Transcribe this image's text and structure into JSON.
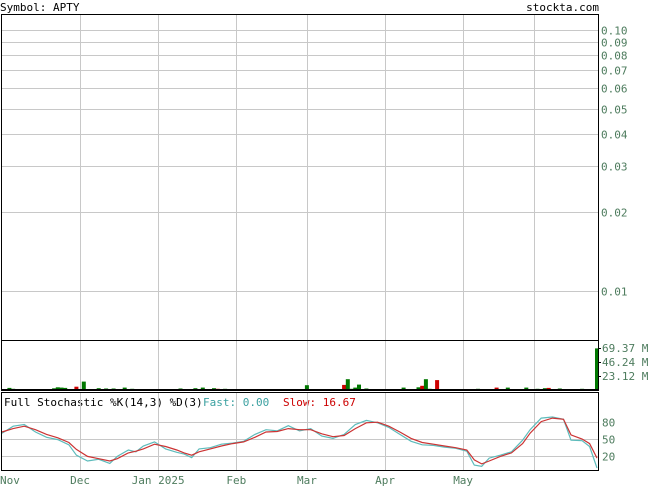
{
  "header": {
    "symbol_label": "Symbol: APTY",
    "site": "stockta.com"
  },
  "colors": {
    "grid": "#c8c8c8",
    "axis_text": "#4e7c5e",
    "frame": "#000000",
    "vol_up": "#007700",
    "vol_down": "#cc0000",
    "fast_line": "#5dbbbb",
    "slow_line": "#cc3333",
    "fast_label": "#3aa0a0",
    "slow_label": "#cc0000"
  },
  "chart_data": [
    {
      "type": "line",
      "name": "price",
      "scale": "log",
      "ylim": [
        0.0065,
        0.115
      ],
      "yticks": [
        0.1,
        0.09,
        0.08,
        0.07,
        0.06,
        0.05,
        0.04,
        0.03,
        0.02,
        0.01
      ],
      "ytick_labels": [
        "0.10",
        "0.09",
        "0.08",
        "0.07",
        "0.06",
        "0.05",
        "0.04",
        "0.03",
        "0.02",
        "0.01"
      ],
      "series": []
    },
    {
      "type": "bar",
      "name": "volume",
      "ytick_labels": [
        "69.37 M",
        "46.24 M",
        "23.12 M"
      ],
      "yticks": [
        69.37,
        46.24,
        23.12
      ],
      "ylim": [
        0,
        80
      ],
      "bars": [
        {
          "d": 2,
          "v": 3.5,
          "c": "up"
        },
        {
          "d": 3,
          "v": 2.0,
          "c": "up"
        },
        {
          "d": 6,
          "v": 1.5,
          "c": "up"
        },
        {
          "d": 8,
          "v": 1.2,
          "c": "up"
        },
        {
          "d": 14,
          "v": 2.8,
          "c": "up"
        },
        {
          "d": 15,
          "v": 4.5,
          "c": "up"
        },
        {
          "d": 16,
          "v": 4.0,
          "c": "up"
        },
        {
          "d": 17,
          "v": 3.5,
          "c": "up"
        },
        {
          "d": 20,
          "v": 5.5,
          "c": "down"
        },
        {
          "d": 21,
          "v": 1.5,
          "c": "up"
        },
        {
          "d": 22,
          "v": 14.0,
          "c": "up"
        },
        {
          "d": 23,
          "v": 1.0,
          "c": "up"
        },
        {
          "d": 26,
          "v": 3.0,
          "c": "up"
        },
        {
          "d": 28,
          "v": 2.5,
          "c": "up"
        },
        {
          "d": 30,
          "v": 2.5,
          "c": "up"
        },
        {
          "d": 33,
          "v": 4.0,
          "c": "up"
        },
        {
          "d": 35,
          "v": 2.0,
          "c": "up"
        },
        {
          "d": 37,
          "v": 1.5,
          "c": "up"
        },
        {
          "d": 38,
          "v": 1.0,
          "c": "up"
        },
        {
          "d": 44,
          "v": 1.0,
          "c": "up"
        },
        {
          "d": 48,
          "v": 2.5,
          "c": "up"
        },
        {
          "d": 52,
          "v": 3.0,
          "c": "up"
        },
        {
          "d": 54,
          "v": 4.0,
          "c": "up"
        },
        {
          "d": 55,
          "v": 1.5,
          "c": "up"
        },
        {
          "d": 57,
          "v": 3.0,
          "c": "up"
        },
        {
          "d": 58,
          "v": 2.0,
          "c": "down"
        },
        {
          "d": 60,
          "v": 2.0,
          "c": "up"
        },
        {
          "d": 63,
          "v": 1.0,
          "c": "up"
        },
        {
          "d": 82,
          "v": 8.0,
          "c": "up"
        },
        {
          "d": 92,
          "v": 8.5,
          "c": "down"
        },
        {
          "d": 93,
          "v": 18.0,
          "c": "up"
        },
        {
          "d": 94,
          "v": 2.0,
          "c": "up"
        },
        {
          "d": 95,
          "v": 4.0,
          "c": "up"
        },
        {
          "d": 96,
          "v": 9.0,
          "c": "up"
        },
        {
          "d": 98,
          "v": 2.5,
          "c": "up"
        },
        {
          "d": 101,
          "v": 1.5,
          "c": "up"
        },
        {
          "d": 108,
          "v": 4.0,
          "c": "up"
        },
        {
          "d": 112,
          "v": 4.5,
          "c": "up"
        },
        {
          "d": 113,
          "v": 7.0,
          "c": "down"
        },
        {
          "d": 114,
          "v": 18.0,
          "c": "up"
        },
        {
          "d": 115,
          "v": 2.0,
          "c": "up"
        },
        {
          "d": 117,
          "v": 16.5,
          "c": "down"
        },
        {
          "d": 128,
          "v": 2.0,
          "c": "up"
        },
        {
          "d": 131,
          "v": 1.5,
          "c": "up"
        },
        {
          "d": 133,
          "v": 4.0,
          "c": "down"
        },
        {
          "d": 136,
          "v": 4.0,
          "c": "up"
        },
        {
          "d": 141,
          "v": 4.0,
          "c": "up"
        },
        {
          "d": 144,
          "v": 2.0,
          "c": "up"
        },
        {
          "d": 146,
          "v": 3.0,
          "c": "up"
        },
        {
          "d": 147,
          "v": 3.5,
          "c": "down"
        },
        {
          "d": 150,
          "v": 2.5,
          "c": "up"
        },
        {
          "d": 156,
          "v": 2.0,
          "c": "up"
        },
        {
          "d": 160,
          "v": 69.37,
          "c": "up"
        }
      ]
    },
    {
      "type": "line",
      "name": "stochastic",
      "title": "Full Stochastic %K(14,3) %D(3)",
      "fast_label": "Fast: 0.00",
      "slow_label": "Slow: 16.67",
      "ylim": [
        0,
        100
      ],
      "yticks": [
        80,
        50,
        20
      ],
      "ytick_labels": [
        "80",
        "50",
        "20"
      ],
      "fast": [
        [
          0,
          60
        ],
        [
          3,
          72
        ],
        [
          6,
          75
        ],
        [
          9,
          62
        ],
        [
          12,
          53
        ],
        [
          15,
          49
        ],
        [
          18,
          40
        ],
        [
          20,
          22
        ],
        [
          23,
          12
        ],
        [
          26,
          15
        ],
        [
          29,
          8
        ],
        [
          31,
          20
        ],
        [
          34,
          31
        ],
        [
          36,
          28
        ],
        [
          38,
          38
        ],
        [
          41,
          45
        ],
        [
          44,
          33
        ],
        [
          47,
          27
        ],
        [
          49,
          24
        ],
        [
          51,
          18
        ],
        [
          53,
          33
        ],
        [
          56,
          35
        ],
        [
          59,
          41
        ],
        [
          62,
          43
        ],
        [
          65,
          46
        ],
        [
          68,
          58
        ],
        [
          71,
          66
        ],
        [
          74,
          64
        ],
        [
          77,
          73
        ],
        [
          80,
          64
        ],
        [
          83,
          68
        ],
        [
          86,
          55
        ],
        [
          89,
          51
        ],
        [
          92,
          58
        ],
        [
          95,
          75
        ],
        [
          98,
          82
        ],
        [
          101,
          78
        ],
        [
          104,
          70
        ],
        [
          107,
          58
        ],
        [
          110,
          46
        ],
        [
          113,
          40
        ],
        [
          116,
          39
        ],
        [
          119,
          36
        ],
        [
          122,
          34
        ],
        [
          125,
          29
        ],
        [
          127,
          5
        ],
        [
          129,
          3
        ],
        [
          131,
          17
        ],
        [
          134,
          22
        ],
        [
          137,
          28
        ],
        [
          140,
          48
        ],
        [
          142,
          66
        ],
        [
          145,
          86
        ],
        [
          148,
          88
        ],
        [
          151,
          84
        ],
        [
          153,
          48
        ],
        [
          156,
          47
        ],
        [
          158,
          37
        ],
        [
          160,
          0
        ]
      ],
      "slow": [
        [
          0,
          62
        ],
        [
          3,
          68
        ],
        [
          6,
          72
        ],
        [
          9,
          66
        ],
        [
          12,
          58
        ],
        [
          15,
          52
        ],
        [
          18,
          44
        ],
        [
          20,
          32
        ],
        [
          23,
          20
        ],
        [
          26,
          16
        ],
        [
          29,
          12
        ],
        [
          31,
          16
        ],
        [
          34,
          26
        ],
        [
          36,
          29
        ],
        [
          38,
          33
        ],
        [
          41,
          41
        ],
        [
          44,
          37
        ],
        [
          47,
          31
        ],
        [
          49,
          26
        ],
        [
          51,
          22
        ],
        [
          53,
          28
        ],
        [
          56,
          33
        ],
        [
          59,
          38
        ],
        [
          62,
          42
        ],
        [
          65,
          45
        ],
        [
          68,
          53
        ],
        [
          71,
          62
        ],
        [
          74,
          63
        ],
        [
          77,
          68
        ],
        [
          80,
          66
        ],
        [
          83,
          66
        ],
        [
          86,
          59
        ],
        [
          89,
          54
        ],
        [
          92,
          56
        ],
        [
          95,
          68
        ],
        [
          98,
          78
        ],
        [
          101,
          79
        ],
        [
          104,
          72
        ],
        [
          107,
          62
        ],
        [
          110,
          51
        ],
        [
          113,
          44
        ],
        [
          116,
          41
        ],
        [
          119,
          38
        ],
        [
          122,
          35
        ],
        [
          125,
          31
        ],
        [
          127,
          14
        ],
        [
          129,
          7
        ],
        [
          131,
          12
        ],
        [
          134,
          20
        ],
        [
          137,
          26
        ],
        [
          140,
          42
        ],
        [
          142,
          60
        ],
        [
          145,
          80
        ],
        [
          148,
          86
        ],
        [
          151,
          84
        ],
        [
          153,
          57
        ],
        [
          156,
          50
        ],
        [
          158,
          42
        ],
        [
          160,
          17
        ]
      ]
    }
  ],
  "x_axis": {
    "labels": [
      {
        "d": 0,
        "label": "Nov"
      },
      {
        "d": 21,
        "label": "Dec"
      },
      {
        "d": 42,
        "label": "Jan 2025"
      },
      {
        "d": 63,
        "label": "Feb"
      },
      {
        "d": 82,
        "label": "Mar"
      },
      {
        "d": 103,
        "label": "Apr"
      },
      {
        "d": 124,
        "label": "May"
      }
    ],
    "extra_gridlines": [
      143
    ],
    "max_index": 160
  }
}
